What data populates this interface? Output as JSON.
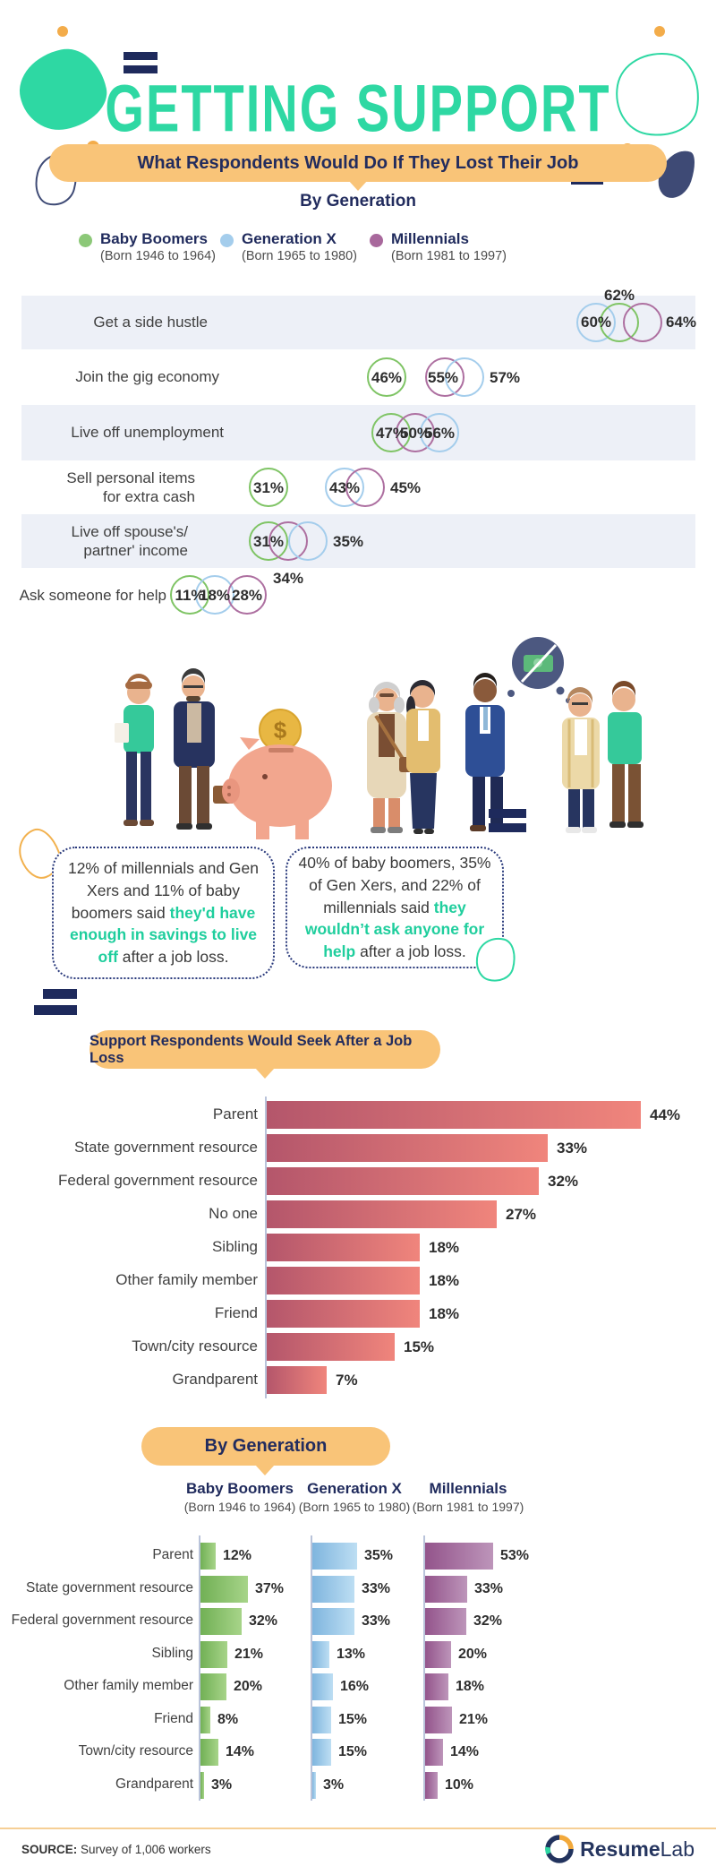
{
  "header": {
    "title": "GETTING SUPPORT"
  },
  "pills": {
    "section1": "What Respondents Would Do If They Lost Their Job",
    "section1_sub": "By Generation",
    "section2": "Support Respondents Would Seek After a Job Loss",
    "section3": "By Generation"
  },
  "legend": [
    {
      "name": "Baby Boomers",
      "sub": "(Born 1946 to 1964)",
      "color": "#8cc878"
    },
    {
      "name": "Generation X",
      "sub": "(Born 1965 to 1980)",
      "color": "#a4cdec"
    },
    {
      "name": "Millennials",
      "sub": "(Born 1981 to 1997)",
      "color": "#a8689c"
    }
  ],
  "callouts": [
    {
      "pre": "12% of millennials and Gen Xers and 11% of baby boomers said ",
      "highlight": "they'd have enough in savings to live off",
      "post": " after a job loss."
    },
    {
      "pre": "40% of baby boomers, 35% of Gen Xers, and 22% of millennials said ",
      "highlight": "they wouldn’t ask anyone for help",
      "post": " after a job loss."
    }
  ],
  "chart_data": [
    {
      "type": "venn-row",
      "title": "What Respondents Would Do If They Lost Their Job",
      "subtitle": "By Generation",
      "legend_position": "top",
      "series_names": [
        "Baby Boomers",
        "Generation X",
        "Millennials"
      ],
      "series_colors": [
        "#7fc465",
        "#a4cdec",
        "#ad6fa0"
      ],
      "rows": [
        {
          "label": "Get a side hustle",
          "lines": [
            "Get a side hustle"
          ],
          "baby_boomers": 62,
          "generation_x": 60,
          "millennials": 64
        },
        {
          "label": "Join the gig economy",
          "lines": [
            "Join the gig economy"
          ],
          "baby_boomers": 46,
          "generation_x": 57,
          "millennials": 55
        },
        {
          "label": "Live off unemployment",
          "lines": [
            "Live off unemployment"
          ],
          "baby_boomers": 47,
          "generation_x": 56,
          "millennials": 50
        },
        {
          "label": "Sell personal items for extra cash",
          "lines": [
            "Sell personal items",
            "for extra cash"
          ],
          "baby_boomers": 31,
          "generation_x": 43,
          "millennials": 45
        },
        {
          "label": "Live off spouse's/ partner' income",
          "lines": [
            "Live off spouse's/",
            "partner' income"
          ],
          "baby_boomers": 31,
          "generation_x": 35,
          "millennials": 34
        },
        {
          "label": "Ask someone for help",
          "lines": [
            "Ask someone for help"
          ],
          "baby_boomers": 11,
          "generation_x": 18,
          "millennials": 28
        }
      ]
    },
    {
      "type": "bar",
      "title": "Support Respondents Would Seek After a Job Loss",
      "orientation": "horizontal",
      "bar_color_gradient": [
        "#b4566b",
        "#f0857c"
      ],
      "categories": [
        "Parent",
        "State government resource",
        "Federal government resource",
        "No one",
        "Sibling",
        "Other family member",
        "Friend",
        "Town/city resource",
        "Grandparent"
      ],
      "values": [
        44,
        33,
        32,
        27,
        18,
        18,
        18,
        15,
        7
      ],
      "xlim": [
        0,
        46
      ],
      "value_suffix": "%"
    },
    {
      "type": "bar",
      "title": "By Generation",
      "orientation": "horizontal",
      "grouped": true,
      "categories": [
        "Parent",
        "State government resource",
        "Federal government resource",
        "Sibling",
        "Other family member",
        "Friend",
        "Town/city resource",
        "Grandparent"
      ],
      "series": [
        {
          "name": "Baby Boomers",
          "sub": "(Born 1946 to 1964)",
          "color_gradient": [
            "#71b055",
            "#a7d489"
          ],
          "values": [
            12,
            37,
            32,
            21,
            20,
            8,
            14,
            3
          ]
        },
        {
          "name": "Generation X",
          "sub": "(Born 1965 to 1980)",
          "color_gradient": [
            "#7fb5de",
            "#bddef3"
          ],
          "values": [
            35,
            33,
            33,
            13,
            16,
            15,
            15,
            3
          ]
        },
        {
          "name": "Millennials",
          "sub": "(Born 1981 to 1997)",
          "color_gradient": [
            "#93548b",
            "#bd95ba"
          ],
          "values": [
            53,
            33,
            32,
            20,
            18,
            21,
            14,
            10
          ]
        }
      ],
      "xlim": [
        0,
        55
      ],
      "value_suffix": "%"
    }
  ],
  "footer": {
    "source_label": "SOURCE:",
    "source_text": "Survey of 1,006 workers",
    "brand_bold": "Resume",
    "brand_light": "Lab"
  },
  "colors": {
    "teal": "#2ed8a3",
    "navy": "#1f2a5c",
    "pill_orange": "#f9c478",
    "stripe_gray": "#edf0f7",
    "highlight_teal": "#1fce9d"
  }
}
